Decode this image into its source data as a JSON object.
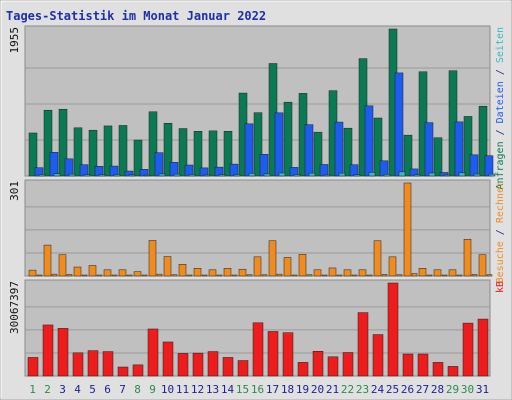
{
  "chart_data": {
    "type": "bar",
    "title": "Tages-Statistik im Monat Januar 2022",
    "categories": [
      "1",
      "2",
      "3",
      "4",
      "5",
      "6",
      "7",
      "8",
      "9",
      "10",
      "11",
      "12",
      "13",
      "14",
      "15",
      "16",
      "17",
      "18",
      "19",
      "20",
      "21",
      "22",
      "23",
      "24",
      "25",
      "26",
      "27",
      "28",
      "29",
      "30",
      "31"
    ],
    "weekend_categories": [
      "1",
      "2",
      "8",
      "9",
      "15",
      "16",
      "22",
      "23",
      "29",
      "30"
    ],
    "grid": true,
    "colors": {
      "anfragen": "#0a7a55",
      "dateien": "#1e5cf0",
      "seiten": "#38b8c8",
      "besuche": "#f08c1e",
      "rechner": "#f08c1e",
      "kb": "#ee1c1c",
      "weekday_tick": "#1f1f8f",
      "weekend_tick": "#2d8a50",
      "title": "#1f2fa8",
      "plot_bg": "#c0c0c0",
      "frame_bg": "#e0e0e0"
    },
    "panels": [
      {
        "ymax_label": "1955",
        "ymax": 1955,
        "series": [
          {
            "name": "Anfragen",
            "color_key": "anfragen",
            "values": [
              572,
              875,
              888,
              641,
              609,
              666,
              672,
              478,
              854,
              702,
              631,
              595,
              600,
              595,
              1103,
              842,
              1496,
              982,
              1099,
              583,
              1135,
              636,
              1561,
              771,
              1955,
              543,
              1386,
              509,
              1400,
              792,
              928
            ]
          },
          {
            "name": "Dateien",
            "color_key": "dateien",
            "values": [
              110,
              315,
              228,
              150,
              129,
              132,
              66,
              89,
              310,
              182,
              146,
              108,
              118,
              158,
              694,
              289,
              840,
              115,
              683,
              153,
              717,
              150,
              933,
              202,
              1371,
              94,
              710,
              47,
              720,
              282,
              270
            ]
          },
          {
            "name": "Seiten",
            "color_key": "seiten",
            "values": [
              20,
              30,
              25,
              18,
              18,
              20,
              15,
              12,
              28,
              25,
              20,
              14,
              18,
              20,
              35,
              28,
              40,
              20,
              38,
              14,
              38,
              18,
              48,
              22,
              55,
              16,
              40,
              14,
              42,
              26,
              26
            ]
          }
        ]
      },
      {
        "ymax_label": "301",
        "ymax": 301,
        "series": [
          {
            "name": "Besuche",
            "color_key": "besuche",
            "values": [
              19,
              100,
              69,
              29,
              34,
              20,
              20,
              14,
              115,
              63,
              38,
              25,
              20,
              25,
              22,
              62,
              114,
              60,
              70,
              20,
              26,
              20,
              20,
              114,
              62,
              301,
              25,
              20,
              20,
              119,
              69
            ]
          },
          {
            "name": "Rechner",
            "color_key": "rechner",
            "values": [
              3,
              6,
              5,
              3,
              3,
              3,
              2,
              2,
              6,
              4,
              3,
              3,
              3,
              3,
              4,
              4,
              6,
              3,
              4,
              2,
              3,
              2,
              3,
              5,
              4,
              8,
              3,
              2,
              3,
              5,
              4
            ]
          }
        ]
      },
      {
        "ymax_label": "30067397",
        "ymax": 30067397,
        "series": [
          {
            "name": "kB",
            "color_key": "kb",
            "values": [
              6000000,
              16500000,
              15400000,
              7500000,
              8200000,
              7900000,
              2900000,
              3600000,
              15200000,
              11000000,
              7300000,
              7400000,
              7900000,
              6000000,
              5000000,
              17200000,
              14400000,
              14000000,
              4400000,
              8000000,
              6200000,
              7600000,
              20500000,
              13400000,
              30067397,
              7100000,
              7100000,
              4400000,
              3100000,
              17100000,
              18400000
            ]
          }
        ]
      }
    ],
    "right_legends": [
      {
        "parts": [
          {
            "text": "Anfragen",
            "color_key": "anfragen"
          },
          {
            "text": " / ",
            "color_key": "weekday_tick"
          },
          {
            "text": "Dateien",
            "color_key": "dateien"
          },
          {
            "text": " / ",
            "color_key": "weekday_tick"
          },
          {
            "text": "Seiten",
            "color_key": "seiten"
          }
        ]
      },
      {
        "parts": [
          {
            "text": "Besuche",
            "color_key": "besuche"
          },
          {
            "text": " / ",
            "color_key": "weekday_tick"
          },
          {
            "text": "Rechner",
            "color_key": "rechner"
          }
        ]
      },
      {
        "parts": [
          {
            "text": "kB",
            "color_key": "kb"
          }
        ]
      }
    ]
  }
}
